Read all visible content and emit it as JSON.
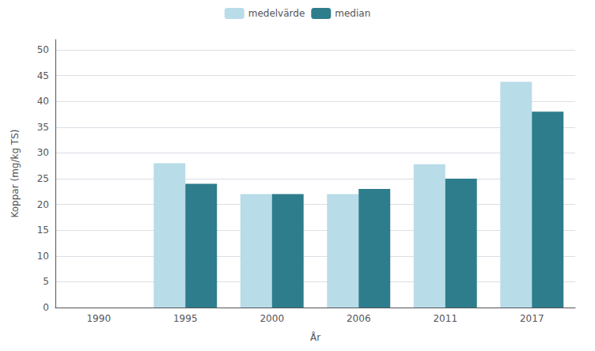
{
  "chart_data": {
    "type": "bar",
    "categories": [
      "1990",
      "1995",
      "2000",
      "2006",
      "2011",
      "2017"
    ],
    "series": [
      {
        "name": "medelvärde",
        "color": "#b8dce8",
        "values": [
          0,
          28,
          22,
          22,
          27.8,
          43.8
        ]
      },
      {
        "name": "median",
        "color": "#2e7d8c",
        "values": [
          0,
          24,
          22,
          23,
          25,
          38
        ]
      }
    ],
    "xlabel": "År",
    "ylabel": "Koppar (mg/kg TS)",
    "ylim": [
      0,
      52
    ],
    "yticks": [
      0,
      5,
      10,
      15,
      20,
      25,
      30,
      35,
      40,
      45,
      50
    ],
    "grid": true,
    "legend": "top"
  }
}
